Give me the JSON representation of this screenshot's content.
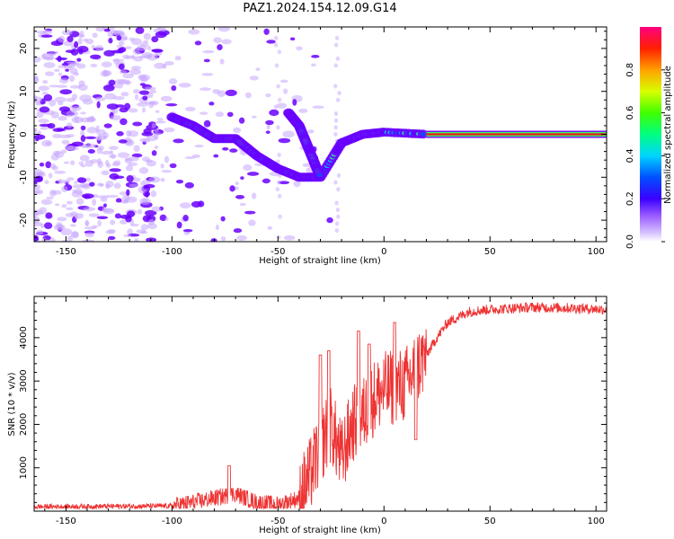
{
  "title": "PAZ1.2024.154.12.09.G14",
  "colors": {
    "snr_line": "#ee3333",
    "spectrum_low": "#c7a6ff",
    "spectrum_mid": "#6a00ff",
    "trace_band": "#e82020"
  },
  "chart_data": [
    {
      "type": "heatmap",
      "panel": "spectrogram",
      "xlabel": "Height of straight line (km)",
      "ylabel": "Frequency (Hz)",
      "xlim": [
        -165,
        105
      ],
      "ylim": [
        -25,
        25
      ],
      "xticks": [
        -150,
        -100,
        -50,
        0,
        50,
        100
      ],
      "xtick_labels": [
        "-150",
        "-100",
        "-50",
        "0",
        "50",
        "100"
      ],
      "yticks": [
        -20,
        -10,
        0,
        10,
        20
      ],
      "ytick_labels": [
        "-20",
        "-10",
        "0",
        "10",
        "20"
      ],
      "colorbar": {
        "label": "Normalized spectral amplitude",
        "range": [
          0.0,
          1.0
        ],
        "ticks": [
          0.0,
          0.2,
          0.4,
          0.6,
          0.8
        ],
        "tick_labels": [
          "0.0",
          "0.2",
          "0.4",
          "0.6",
          "0.8"
        ]
      },
      "ridge": [
        {
          "x": -100,
          "y": 4
        },
        {
          "x": -90,
          "y": 2
        },
        {
          "x": -80,
          "y": -1
        },
        {
          "x": -70,
          "y": -1
        },
        {
          "x": -60,
          "y": -5
        },
        {
          "x": -50,
          "y": -8
        },
        {
          "x": -40,
          "y": -10
        },
        {
          "x": -30,
          "y": -10
        },
        {
          "x": -20,
          "y": -2
        },
        {
          "x": -10,
          "y": 0
        },
        {
          "x": 0,
          "y": 0.5
        },
        {
          "x": 20,
          "y": 0
        }
      ],
      "branch": [
        {
          "x": -45,
          "y": 5
        },
        {
          "x": -40,
          "y": 2
        },
        {
          "x": -35,
          "y": -4
        },
        {
          "x": -30,
          "y": -10
        }
      ],
      "steady_line": {
        "x_start": 20,
        "x_end": 105,
        "y": 0
      }
    },
    {
      "type": "line",
      "panel": "snr",
      "xlabel": "Height of straight line (km)",
      "ylabel": "SNR (10 * v/v)",
      "xlim": [
        -165,
        105
      ],
      "ylim": [
        0,
        4950
      ],
      "xticks": [
        -150,
        -100,
        -50,
        0,
        50,
        100
      ],
      "xtick_labels": [
        "-150",
        "-100",
        "-50",
        "0",
        "50",
        "100"
      ],
      "yticks": [
        1000,
        2000,
        3000,
        4000
      ],
      "ytick_labels": [
        "1000",
        "2000",
        "3000",
        "4000"
      ],
      "series": [
        {
          "color": "#ee3333",
          "envelope": [
            {
              "x": -165,
              "y": 100
            },
            {
              "x": -100,
              "y": 120
            },
            {
              "x": -90,
              "y": 200
            },
            {
              "x": -80,
              "y": 300
            },
            {
              "x": -70,
              "y": 400
            },
            {
              "x": -60,
              "y": 200
            },
            {
              "x": -50,
              "y": 150
            },
            {
              "x": -40,
              "y": 300
            },
            {
              "x": -35,
              "y": 800
            },
            {
              "x": -30,
              "y": 1500
            },
            {
              "x": -25,
              "y": 2000
            },
            {
              "x": -20,
              "y": 1200
            },
            {
              "x": -15,
              "y": 2000
            },
            {
              "x": -10,
              "y": 2200
            },
            {
              "x": -5,
              "y": 2600
            },
            {
              "x": 0,
              "y": 2800
            },
            {
              "x": 10,
              "y": 2900
            },
            {
              "x": 15,
              "y": 3300
            },
            {
              "x": 20,
              "y": 3600
            },
            {
              "x": 25,
              "y": 4000
            },
            {
              "x": 30,
              "y": 4350
            },
            {
              "x": 40,
              "y": 4600
            },
            {
              "x": 50,
              "y": 4650
            },
            {
              "x": 70,
              "y": 4700
            },
            {
              "x": 90,
              "y": 4680
            },
            {
              "x": 105,
              "y": 4650
            }
          ],
          "peaks": [
            {
              "x": -73,
              "y": 1050
            },
            {
              "x": -30,
              "y": 3600
            },
            {
              "x": -26,
              "y": 3700
            },
            {
              "x": -12,
              "y": 4150
            },
            {
              "x": -7,
              "y": 3850
            },
            {
              "x": 5,
              "y": 4350
            },
            {
              "x": 15,
              "y": 1650
            }
          ]
        }
      ]
    }
  ]
}
